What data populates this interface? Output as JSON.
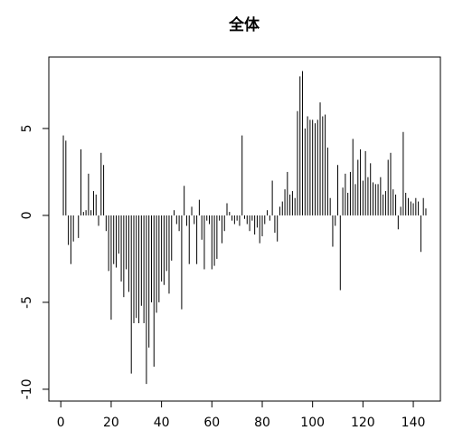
{
  "chart_data": {
    "type": "bar",
    "title": "全体",
    "color": "#000000",
    "x": [
      1,
      2,
      3,
      4,
      5,
      6,
      7,
      8,
      9,
      10,
      11,
      12,
      13,
      14,
      15,
      16,
      17,
      18,
      19,
      20,
      21,
      22,
      23,
      24,
      25,
      26,
      27,
      28,
      29,
      30,
      31,
      32,
      33,
      34,
      35,
      36,
      37,
      38,
      39,
      40,
      41,
      42,
      43,
      44,
      45,
      46,
      47,
      48,
      49,
      50,
      51,
      52,
      53,
      54,
      55,
      56,
      57,
      58,
      59,
      60,
      61,
      62,
      63,
      64,
      65,
      66,
      67,
      68,
      69,
      70,
      71,
      72,
      73,
      74,
      75,
      76,
      77,
      78,
      79,
      80,
      81,
      82,
      83,
      84,
      85,
      86,
      87,
      88,
      89,
      90,
      91,
      92,
      93,
      94,
      95,
      96,
      97,
      98,
      99,
      100,
      101,
      102,
      103,
      104,
      105,
      106,
      107,
      108,
      109,
      110,
      111,
      112,
      113,
      114,
      115,
      116,
      117,
      118,
      119,
      120,
      121,
      122,
      123,
      124,
      125,
      126,
      127,
      128,
      129,
      130,
      131,
      132,
      133,
      134,
      135,
      136,
      137,
      138,
      139,
      140,
      141,
      142,
      143,
      144,
      145
    ],
    "values": [
      4.6,
      4.3,
      -1.7,
      -2.8,
      -1.5,
      0,
      -1.3,
      3.8,
      0.2,
      0.3,
      2.4,
      0.3,
      1.4,
      1.2,
      -0.6,
      3.6,
      2.9,
      -0.9,
      -3.2,
      -6.0,
      -2.8,
      -3.0,
      -2.2,
      -3.8,
      -4.7,
      -3.1,
      -4.4,
      -9.1,
      -6.2,
      -5.9,
      -6.2,
      -5.2,
      -6.2,
      -9.7,
      -7.6,
      -5.0,
      -8.7,
      -5.6,
      -5.0,
      -3.8,
      -4.0,
      -3.2,
      -4.5,
      -2.6,
      0.3,
      -0.5,
      -0.9,
      -5.4,
      1.7,
      -0.6,
      -2.8,
      0.5,
      -0.5,
      -2.8,
      0.9,
      -1.4,
      -3.1,
      -0.3,
      -0.5,
      -3.1,
      -2.9,
      -2.5,
      -0.3,
      -1.6,
      -0.9,
      0.7,
      0.2,
      -0.3,
      -0.5,
      -0.3,
      -0.6,
      4.6,
      -0.2,
      -0.5,
      -0.9,
      -0.3,
      -1.1,
      -0.7,
      -1.6,
      -1.2,
      -0.5,
      0.3,
      -0.3,
      2.0,
      -1.0,
      -1.5,
      0.5,
      0.8,
      1.5,
      2.5,
      1.2,
      1.4,
      1.0,
      6.0,
      8.0,
      8.3,
      5.0,
      5.7,
      5.5,
      5.5,
      5.3,
      5.5,
      6.5,
      5.7,
      5.8,
      3.9,
      1.0,
      -1.8,
      -0.6,
      2.9,
      -4.3,
      1.6,
      2.4,
      1.3,
      2.5,
      4.4,
      1.8,
      3.2,
      3.8,
      2.0,
      3.7,
      2.2,
      3.0,
      1.9,
      1.8,
      1.8,
      2.2,
      1.2,
      1.4,
      3.2,
      3.6,
      1.5,
      1.2,
      -0.8,
      0.5,
      4.8,
      1.3,
      1.0,
      0.8,
      0.7,
      1.0,
      0.8,
      -2.1,
      1.0,
      0.4
    ],
    "xlim": [
      -4.76,
      150.76
    ],
    "ylim": [
      -10.68,
      9.11
    ],
    "xticks": [
      0,
      20,
      40,
      60,
      80,
      100,
      120,
      140
    ],
    "yticks": [
      -10,
      -5,
      0,
      5
    ]
  }
}
